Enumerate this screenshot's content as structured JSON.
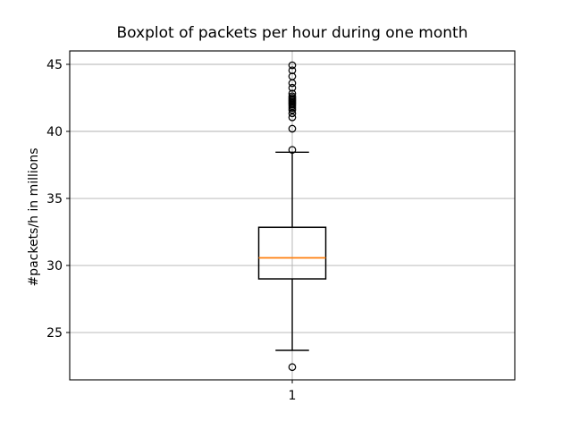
{
  "chart_data": {
    "type": "boxplot",
    "title": "Boxplot of packets per hour during one month",
    "ylabel": "#packets/h in millions",
    "xlabel": "",
    "categories": [
      "1"
    ],
    "yticks": [
      25,
      30,
      35,
      40,
      45
    ],
    "ylim": [
      21.47,
      46.0
    ],
    "grid": true,
    "legend": false,
    "series": [
      {
        "name": "1",
        "whisker_low": 23.67,
        "q1": 29.0,
        "median": 30.57,
        "q3": 32.85,
        "whisker_high": 38.45,
        "outliers_low": [
          22.42
        ],
        "outliers_high": [
          38.62,
          40.2,
          41.05,
          41.35,
          41.6,
          41.75,
          41.88,
          42.0,
          42.1,
          42.2,
          42.3,
          42.4,
          42.5,
          42.62,
          42.82,
          43.25,
          43.6,
          44.1,
          44.55,
          44.93
        ]
      }
    ],
    "colors": {
      "box": "#000000",
      "median": "#ff7f0e",
      "whisker": "#000000",
      "outlier_edge": "#000000",
      "grid": "#b0b0b0",
      "spine": "#000000",
      "text": "#000000",
      "background": "#ffffff"
    }
  }
}
